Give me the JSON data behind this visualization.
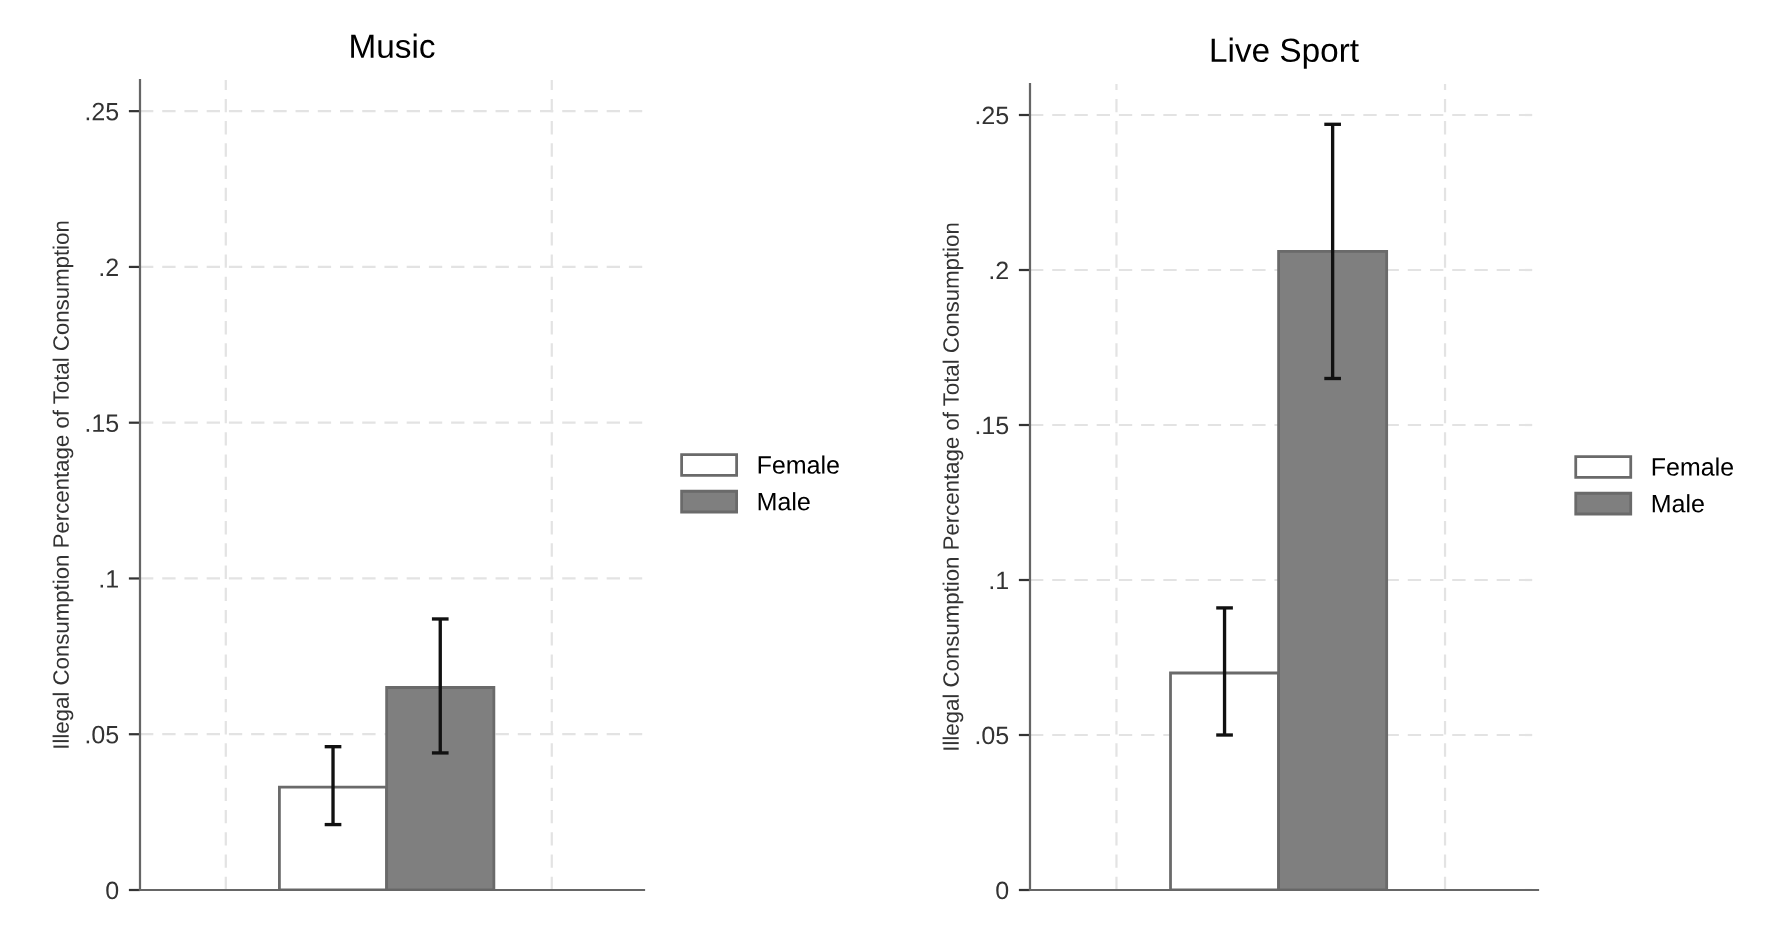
{
  "chart_data": [
    {
      "type": "bar",
      "title": "Music",
      "ylabel": "Illegal Consumption Percentage of Total Consumption",
      "categories": [
        null
      ],
      "series": [
        {
          "name": "Female",
          "color": "#ffffff",
          "values": [
            0.033
          ],
          "errors": [
            [
              0.021,
              0.046
            ]
          ]
        },
        {
          "name": "Male",
          "color": "#7f7f7f",
          "values": [
            0.065
          ],
          "errors": [
            [
              0.044,
              0.087
            ]
          ]
        }
      ],
      "ylim": [
        0,
        0.26
      ],
      "yticks": [
        {
          "value": 0,
          "label": "0"
        },
        {
          "value": 0.05,
          "label": ".05"
        },
        {
          "value": 0.1,
          "label": ".1"
        },
        {
          "value": 0.15,
          "label": ".15"
        },
        {
          "value": 0.2,
          "label": ".2"
        },
        {
          "value": 0.25,
          "label": ".25"
        }
      ],
      "grid": true,
      "legend": "right"
    },
    {
      "type": "bar",
      "title": "Live Sport",
      "ylabel": "Illegal Consumption Percentage of Total Consumption",
      "categories": [
        null
      ],
      "series": [
        {
          "name": "Female",
          "color": "#ffffff",
          "values": [
            0.07
          ],
          "errors": [
            [
              0.05,
              0.091
            ]
          ]
        },
        {
          "name": "Male",
          "color": "#7f7f7f",
          "values": [
            0.206
          ],
          "errors": [
            [
              0.165,
              0.247
            ]
          ]
        }
      ],
      "ylim": [
        0,
        0.26
      ],
      "yticks": [
        {
          "value": 0,
          "label": "0"
        },
        {
          "value": 0.05,
          "label": ".05"
        },
        {
          "value": 0.1,
          "label": ".1"
        },
        {
          "value": 0.15,
          "label": ".15"
        },
        {
          "value": 0.2,
          "label": ".2"
        },
        {
          "value": 0.25,
          "label": ".25"
        }
      ],
      "grid": true,
      "legend": "right"
    }
  ]
}
